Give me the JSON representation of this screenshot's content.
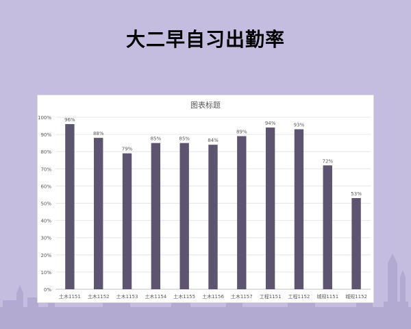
{
  "slide": {
    "title": "大二早自习出勤率"
  },
  "chart_data": {
    "type": "bar",
    "title": "图表标题",
    "xlabel": "",
    "ylabel": "",
    "categories": [
      "土木1151",
      "土木1152",
      "土木1153",
      "土木1154",
      "土木1155",
      "土木1156",
      "土木1157",
      "工程1151",
      "工程1152",
      "城规1151",
      "城规1152"
    ],
    "values": [
      96,
      88,
      79,
      85,
      85,
      84,
      89,
      94,
      93,
      72,
      53
    ],
    "data_labels": [
      "96%",
      "88%",
      "79%",
      "85%",
      "85%",
      "84%",
      "89%",
      "94%",
      "93%",
      "72%",
      "53%"
    ],
    "y_ticks": [
      "0%",
      "10%",
      "20%",
      "30%",
      "40%",
      "50%",
      "60%",
      "70%",
      "80%",
      "90%",
      "100%"
    ],
    "ylim": [
      0,
      100
    ],
    "grid": true,
    "legend": "none",
    "bar_color": "#5d5470"
  },
  "colors": {
    "background": "#c4bddf",
    "skyline": "#b2aad0",
    "bar": "#5d5470"
  }
}
